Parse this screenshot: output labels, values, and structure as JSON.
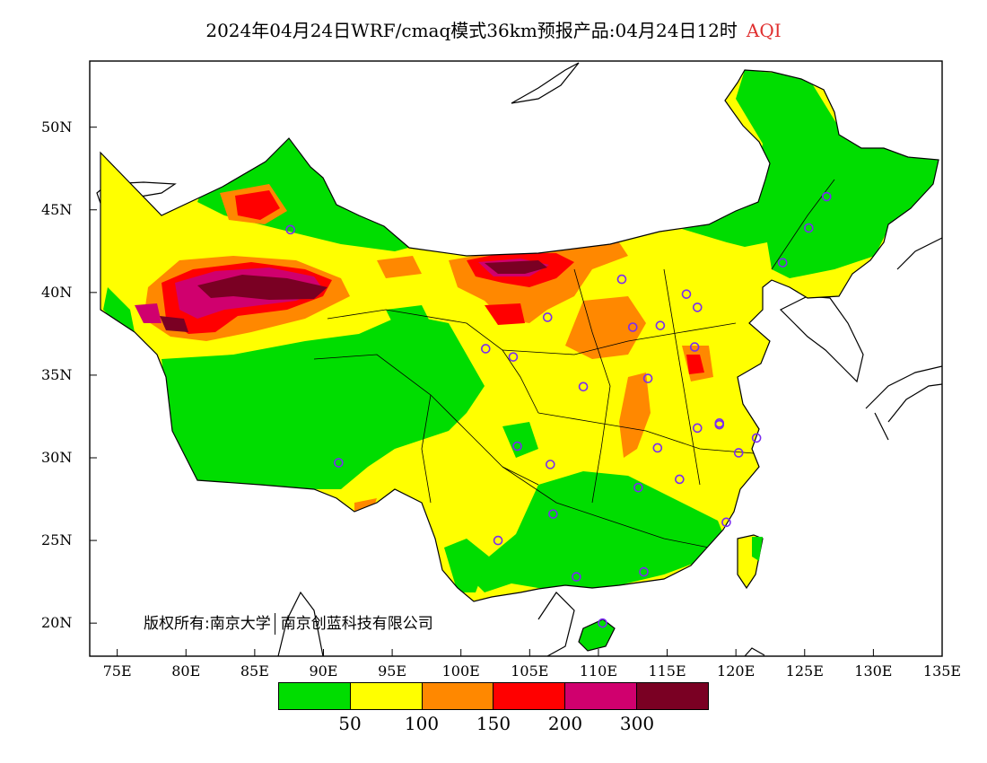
{
  "header": {
    "title": "2024年04月24日WRF/cmaq模式36km预报产品:04月24日12时",
    "variable": "AQI"
  },
  "axes": {
    "lat_ticks": [
      "50N",
      "45N",
      "40N",
      "35N",
      "30N",
      "25N",
      "20N"
    ],
    "lat_values": [
      50,
      45,
      40,
      35,
      30,
      25,
      20
    ],
    "lon_ticks": [
      "75E",
      "80E",
      "85E",
      "90E",
      "95E",
      "100E",
      "105E",
      "110E",
      "115E",
      "120E",
      "125E",
      "130E",
      "135E"
    ],
    "lon_values": [
      75,
      80,
      85,
      90,
      95,
      100,
      105,
      110,
      115,
      120,
      125,
      130,
      135
    ],
    "lon_range": [
      73,
      135
    ],
    "lat_range": [
      18,
      54
    ]
  },
  "copyright": {
    "prefix": "版权所有:",
    "owner1": "南京大学",
    "owner2": "南京创蓝科技有限公司"
  },
  "legend": {
    "colors": [
      "#00dd00",
      "#ffff00",
      "#ff8800",
      "#ff0000",
      "#d0006e",
      "#7a0023"
    ],
    "labels": [
      "50",
      "100",
      "150",
      "200",
      "300"
    ]
  },
  "colors": {
    "good": "#00dd00",
    "moderate": "#ffff00",
    "usg": "#ff8800",
    "unhealthy": "#ff0000",
    "very_unhealthy": "#d0006e",
    "hazardous": "#7a0023",
    "station_marker": "#7a2cf0"
  },
  "stations": [
    [
      87.6,
      43.8
    ],
    [
      91.1,
      29.7
    ],
    [
      101.8,
      36.6
    ],
    [
      103.8,
      36.1
    ],
    [
      104.1,
      30.7
    ],
    [
      106.5,
      29.6
    ],
    [
      106.7,
      26.6
    ],
    [
      102.7,
      25.0
    ],
    [
      108.4,
      22.8
    ],
    [
      110.3,
      20.0
    ],
    [
      113.3,
      23.1
    ],
    [
      112.9,
      28.2
    ],
    [
      114.3,
      30.6
    ],
    [
      115.9,
      28.7
    ],
    [
      117.2,
      31.8
    ],
    [
      118.8,
      32.1
    ],
    [
      119.3,
      26.1
    ],
    [
      120.2,
      30.3
    ],
    [
      121.5,
      31.2
    ],
    [
      117.0,
      36.7
    ],
    [
      113.6,
      34.8
    ],
    [
      112.5,
      37.9
    ],
    [
      114.5,
      38.0
    ],
    [
      116.4,
      39.9
    ],
    [
      117.2,
      39.1
    ],
    [
      111.7,
      40.8
    ],
    [
      106.3,
      38.5
    ],
    [
      108.9,
      34.3
    ],
    [
      123.4,
      41.8
    ],
    [
      125.3,
      43.9
    ],
    [
      126.6,
      45.8
    ],
    [
      118.8,
      32.0
    ]
  ]
}
